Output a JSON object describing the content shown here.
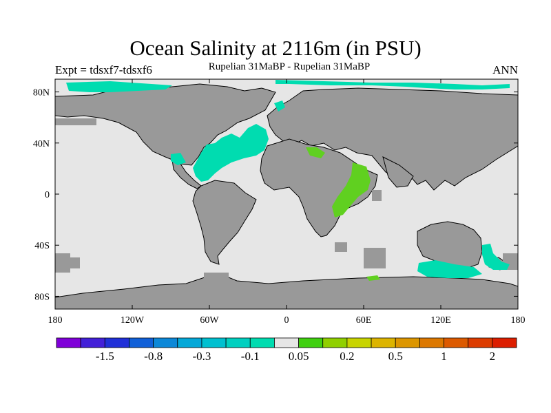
{
  "title": "Ocean Salinity at 2116m (in PSU)",
  "subtitle": "Rupelian  31MaBP - Rupelian  31MaBP",
  "experiment_label": "Expt = tdsxf7-tdsxf6",
  "season_label": "ANN",
  "map": {
    "projection": "cylindrical-equidistant",
    "lon_range": [
      -180,
      180
    ],
    "lat_range": [
      -90,
      90
    ],
    "ocean_color": "#e6e6e6",
    "land_color": "#999999",
    "coastline_color": "#000000",
    "x_ticks": [
      {
        "lon": -180,
        "label": "180"
      },
      {
        "lon": -120,
        "label": "120W"
      },
      {
        "lon": -60,
        "label": "60W"
      },
      {
        "lon": 0,
        "label": "0"
      },
      {
        "lon": 60,
        "label": "60E"
      },
      {
        "lon": 120,
        "label": "120E"
      },
      {
        "lon": 180,
        "label": "180"
      }
    ],
    "y_ticks": [
      {
        "lat": 80,
        "label": "80N"
      },
      {
        "lat": 40,
        "label": "40N"
      },
      {
        "lat": 0,
        "label": "0"
      },
      {
        "lat": -40,
        "label": "40S"
      },
      {
        "lat": -80,
        "label": "80S"
      }
    ]
  },
  "colorbar": {
    "colors": [
      "#7f00d8",
      "#4320d8",
      "#2030d8",
      "#1060d8",
      "#0c88d8",
      "#04a8d8",
      "#00c0d0",
      "#00d0c0",
      "#00dcb0",
      "#e6e6e6",
      "#40d010",
      "#90d000",
      "#c8d400",
      "#dcb400",
      "#dc9600",
      "#dc7800",
      "#dc5a00",
      "#dc3c00",
      "#dc1e00"
    ],
    "labels": [
      "-1.5",
      "-0.8",
      "-0.3",
      "-0.1",
      "0.05",
      "0.2",
      "0.5",
      "1",
      "2"
    ]
  },
  "anomaly_colors": {
    "negative_small": "#00dcb0",
    "positive_small": "#60d020",
    "positive_mid": "#80cc00"
  }
}
